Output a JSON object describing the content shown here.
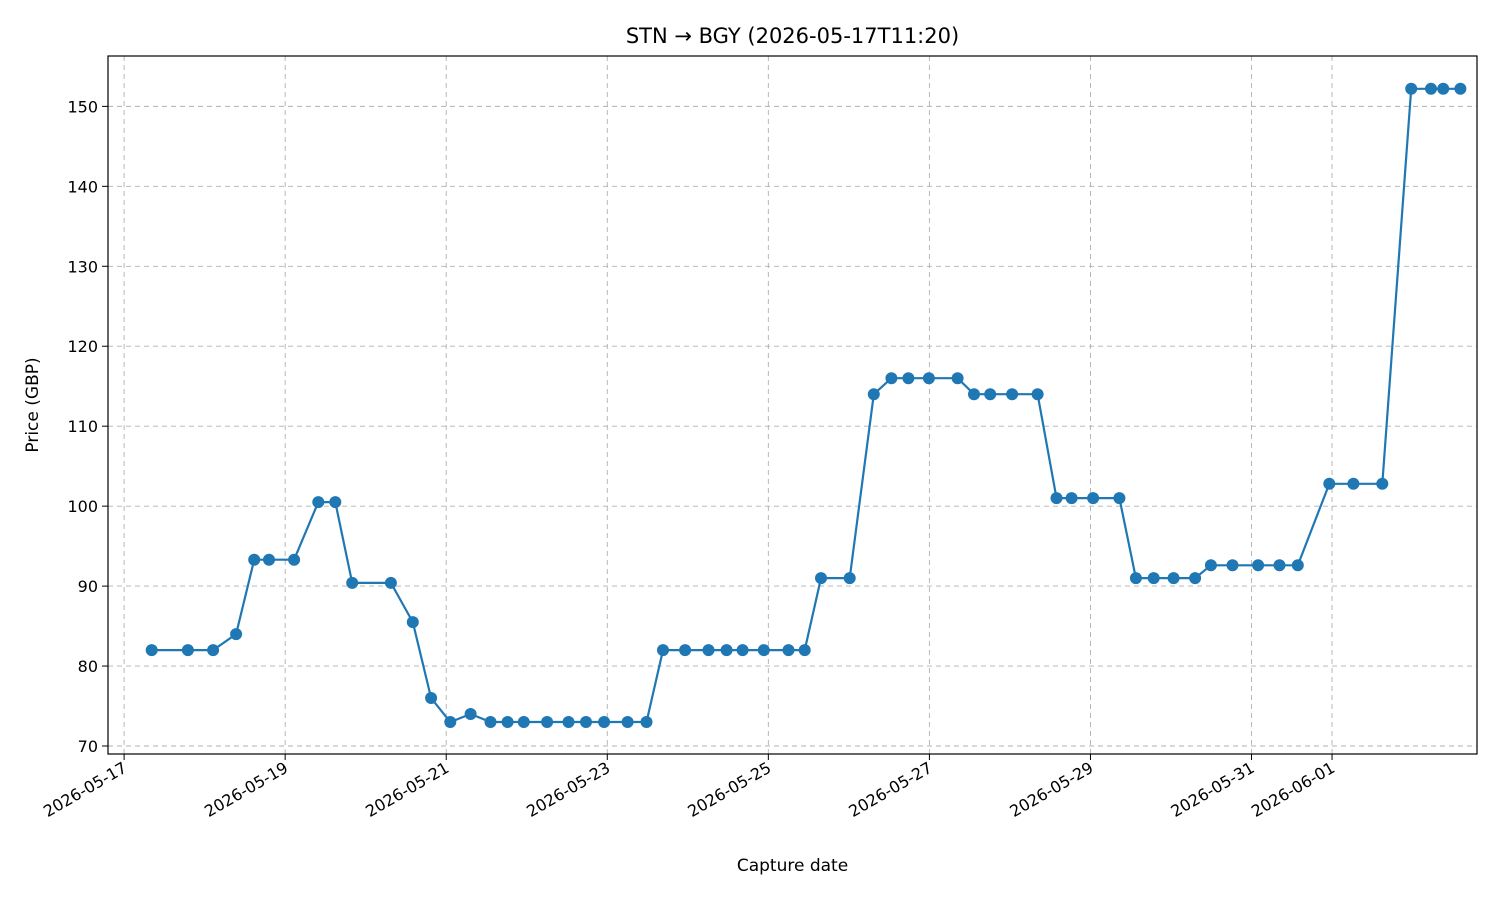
{
  "chart_data": {
    "type": "line",
    "title": "STN → BGY (2026-05-17T11:20)",
    "xlabel": "Capture date",
    "ylabel": "Price (GBP)",
    "grid": true,
    "color": "#1f77b4",
    "xlim": [
      "2026-05-16T19:12",
      "2026-06-02T19:12"
    ],
    "ylim": [
      69,
      156.3
    ],
    "x_ticks": [
      "2026-05-17",
      "2026-05-19",
      "2026-05-21",
      "2026-05-23",
      "2026-05-25",
      "2026-05-27",
      "2026-05-29",
      "2026-05-31",
      "2026-06-01"
    ],
    "y_ticks": [
      70,
      80,
      90,
      100,
      110,
      120,
      130,
      140,
      150
    ],
    "series": [
      {
        "x": [
          "2026-05-17T08:13",
          "2026-05-17T19:00",
          "2026-05-18T02:32",
          "2026-05-18T09:22",
          "2026-05-18T14:47",
          "2026-05-18T19:11",
          "2026-05-19T02:40",
          "2026-05-19T09:52",
          "2026-05-19T14:57",
          "2026-05-19T19:58",
          "2026-05-20T07:30",
          "2026-05-20T14:02",
          "2026-05-20T19:29",
          "2026-05-21T01:13",
          "2026-05-21T07:15",
          "2026-05-21T13:12",
          "2026-05-21T18:18",
          "2026-05-21T23:08",
          "2026-05-22T06:04",
          "2026-05-22T12:26",
          "2026-05-22T17:40",
          "2026-05-22T23:03",
          "2026-05-23T06:04",
          "2026-05-23T11:41",
          "2026-05-23T16:37",
          "2026-05-23T23:11",
          "2026-05-24T06:10",
          "2026-05-24T11:34",
          "2026-05-24T16:19",
          "2026-05-24T22:38",
          "2026-05-25T06:01",
          "2026-05-25T10:50",
          "2026-05-25T15:42",
          "2026-05-26T00:15",
          "2026-05-26T07:26",
          "2026-05-26T12:40",
          "2026-05-26T17:45",
          "2026-05-26T23:51",
          "2026-05-27T08:24",
          "2026-05-27T13:17",
          "2026-05-27T18:07",
          "2026-05-28T00:39",
          "2026-05-28T08:15",
          "2026-05-28T13:53",
          "2026-05-28T18:22",
          "2026-05-29T00:47",
          "2026-05-29T08:38",
          "2026-05-29T13:32",
          "2026-05-29T18:50",
          "2026-05-30T00:47",
          "2026-05-30T07:11",
          "2026-05-30T11:54",
          "2026-05-30T18:20",
          "2026-05-31T01:58",
          "2026-05-31T08:21",
          "2026-05-31T13:48",
          "2026-05-31T23:10",
          "2026-06-01T06:21",
          "2026-06-01T14:59",
          "2026-06-01T23:36",
          "2026-06-02T05:30",
          "2026-06-02T09:07",
          "2026-06-02T14:15"
        ],
        "y": [
          82,
          82,
          82,
          84,
          93.3,
          93.3,
          93.3,
          100.5,
          100.5,
          90.4,
          90.4,
          85.5,
          76,
          73,
          74,
          73,
          73,
          73,
          73,
          73,
          73,
          73,
          73,
          73,
          82,
          82,
          82,
          82,
          82,
          82,
          82,
          82,
          91,
          91,
          114,
          116,
          116,
          116,
          116,
          114,
          114,
          114,
          114,
          101,
          101,
          101,
          101,
          91,
          91,
          91,
          91,
          92.6,
          92.6,
          92.6,
          92.6,
          92.6,
          102.8,
          102.8,
          102.8,
          152.2,
          152.2,
          152.2,
          152.2
        ]
      }
    ]
  }
}
